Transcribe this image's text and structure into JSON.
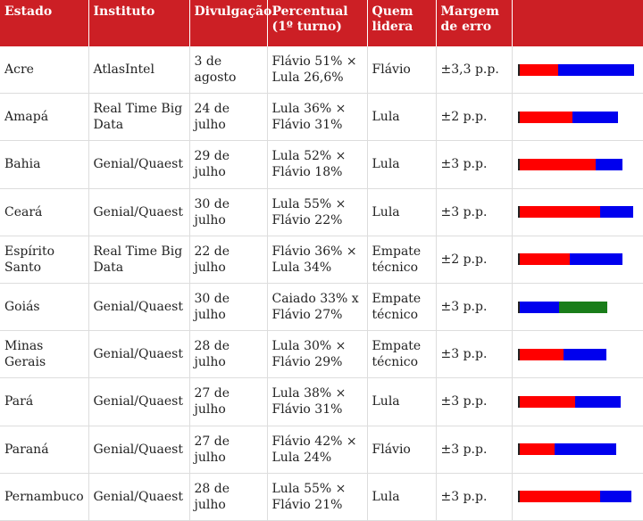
{
  "colors": {
    "header_bg": "#cc1f25",
    "red": "#ff0000",
    "blue": "#0000ee",
    "green": "#1a7d1a"
  },
  "headers": [
    "Estado",
    "Instituto",
    "Divulgação",
    "Percentual (1º turno)",
    "Quem lidera",
    "Margem de erro",
    ""
  ],
  "rows": [
    {
      "estado": "Acre",
      "instituto": "AtlasIntel",
      "divulgacao": "3 de agosto",
      "percentual": "Flávio 51% × Lula 26,6%",
      "lidera": "Flávio",
      "margem": "±3,3 p.p.",
      "bar": [
        {
          "c": "red",
          "v": 26.6
        },
        {
          "c": "blue",
          "v": 51
        }
      ]
    },
    {
      "estado": "Amapá",
      "instituto": "Real Time Big Data",
      "divulgacao": "24 de julho",
      "percentual": "Lula 36% × Flávio 31%",
      "lidera": "Lula",
      "margem": "±2 p.p.",
      "bar": [
        {
          "c": "red",
          "v": 36
        },
        {
          "c": "blue",
          "v": 31
        }
      ]
    },
    {
      "estado": "Bahia",
      "instituto": "Genial/Quaest",
      "divulgacao": "29 de julho",
      "percentual": "Lula 52% × Flávio 18%",
      "lidera": "Lula",
      "margem": "±3 p.p.",
      "bar": [
        {
          "c": "red",
          "v": 52
        },
        {
          "c": "blue",
          "v": 18
        }
      ]
    },
    {
      "estado": "Ceará",
      "instituto": "Genial/Quaest",
      "divulgacao": "30 de julho",
      "percentual": "Lula 55% × Flávio 22%",
      "lidera": "Lula",
      "margem": "±3 p.p.",
      "bar": [
        {
          "c": "red",
          "v": 55
        },
        {
          "c": "blue",
          "v": 22
        }
      ]
    },
    {
      "estado": "Espírito Santo",
      "instituto": "Real Time Big Data",
      "divulgacao": "22 de julho",
      "percentual": "Flávio 36% × Lula 34%",
      "lidera": "Empate técnico",
      "margem": "±2 p.p.",
      "bar": [
        {
          "c": "red",
          "v": 34
        },
        {
          "c": "blue",
          "v": 36
        }
      ]
    },
    {
      "estado": "Goiás",
      "instituto": "Genial/Quaest",
      "divulgacao": "30 de julho",
      "percentual": "Caiado 33% x Flávio 27%",
      "lidera": "Empate técnico",
      "margem": "±3 p.p.",
      "bar": [
        {
          "c": "blue",
          "v": 27
        },
        {
          "c": "green",
          "v": 33
        }
      ]
    },
    {
      "estado": "Minas Gerais",
      "instituto": "Genial/Quaest",
      "divulgacao": "28 de julho",
      "percentual": "Lula 30% × Flávio 29%",
      "lidera": "Empate técnico",
      "margem": "±3 p.p.",
      "bar": [
        {
          "c": "red",
          "v": 30
        },
        {
          "c": "blue",
          "v": 29
        }
      ]
    },
    {
      "estado": "Pará",
      "instituto": "Genial/Quaest",
      "divulgacao": "27 de julho",
      "percentual": "Lula 38% × Flávio 31%",
      "lidera": "Lula",
      "margem": "±3 p.p.",
      "bar": [
        {
          "c": "red",
          "v": 38
        },
        {
          "c": "blue",
          "v": 31
        }
      ]
    },
    {
      "estado": "Paraná",
      "instituto": "Genial/Quaest",
      "divulgacao": "27 de julho",
      "percentual": "Flávio 42% × Lula 24%",
      "lidera": "Flávio",
      "margem": "±3 p.p.",
      "bar": [
        {
          "c": "red",
          "v": 24
        },
        {
          "c": "blue",
          "v": 42
        }
      ]
    },
    {
      "estado": "Pernambuco",
      "instituto": "Genial/Quaest",
      "divulgacao": "28 de julho",
      "percentual": "Lula 55% × Flávio 21%",
      "lidera": "Lula",
      "margem": "±3 p.p.",
      "bar": [
        {
          "c": "red",
          "v": 55
        },
        {
          "c": "blue",
          "v": 21
        }
      ]
    }
  ]
}
